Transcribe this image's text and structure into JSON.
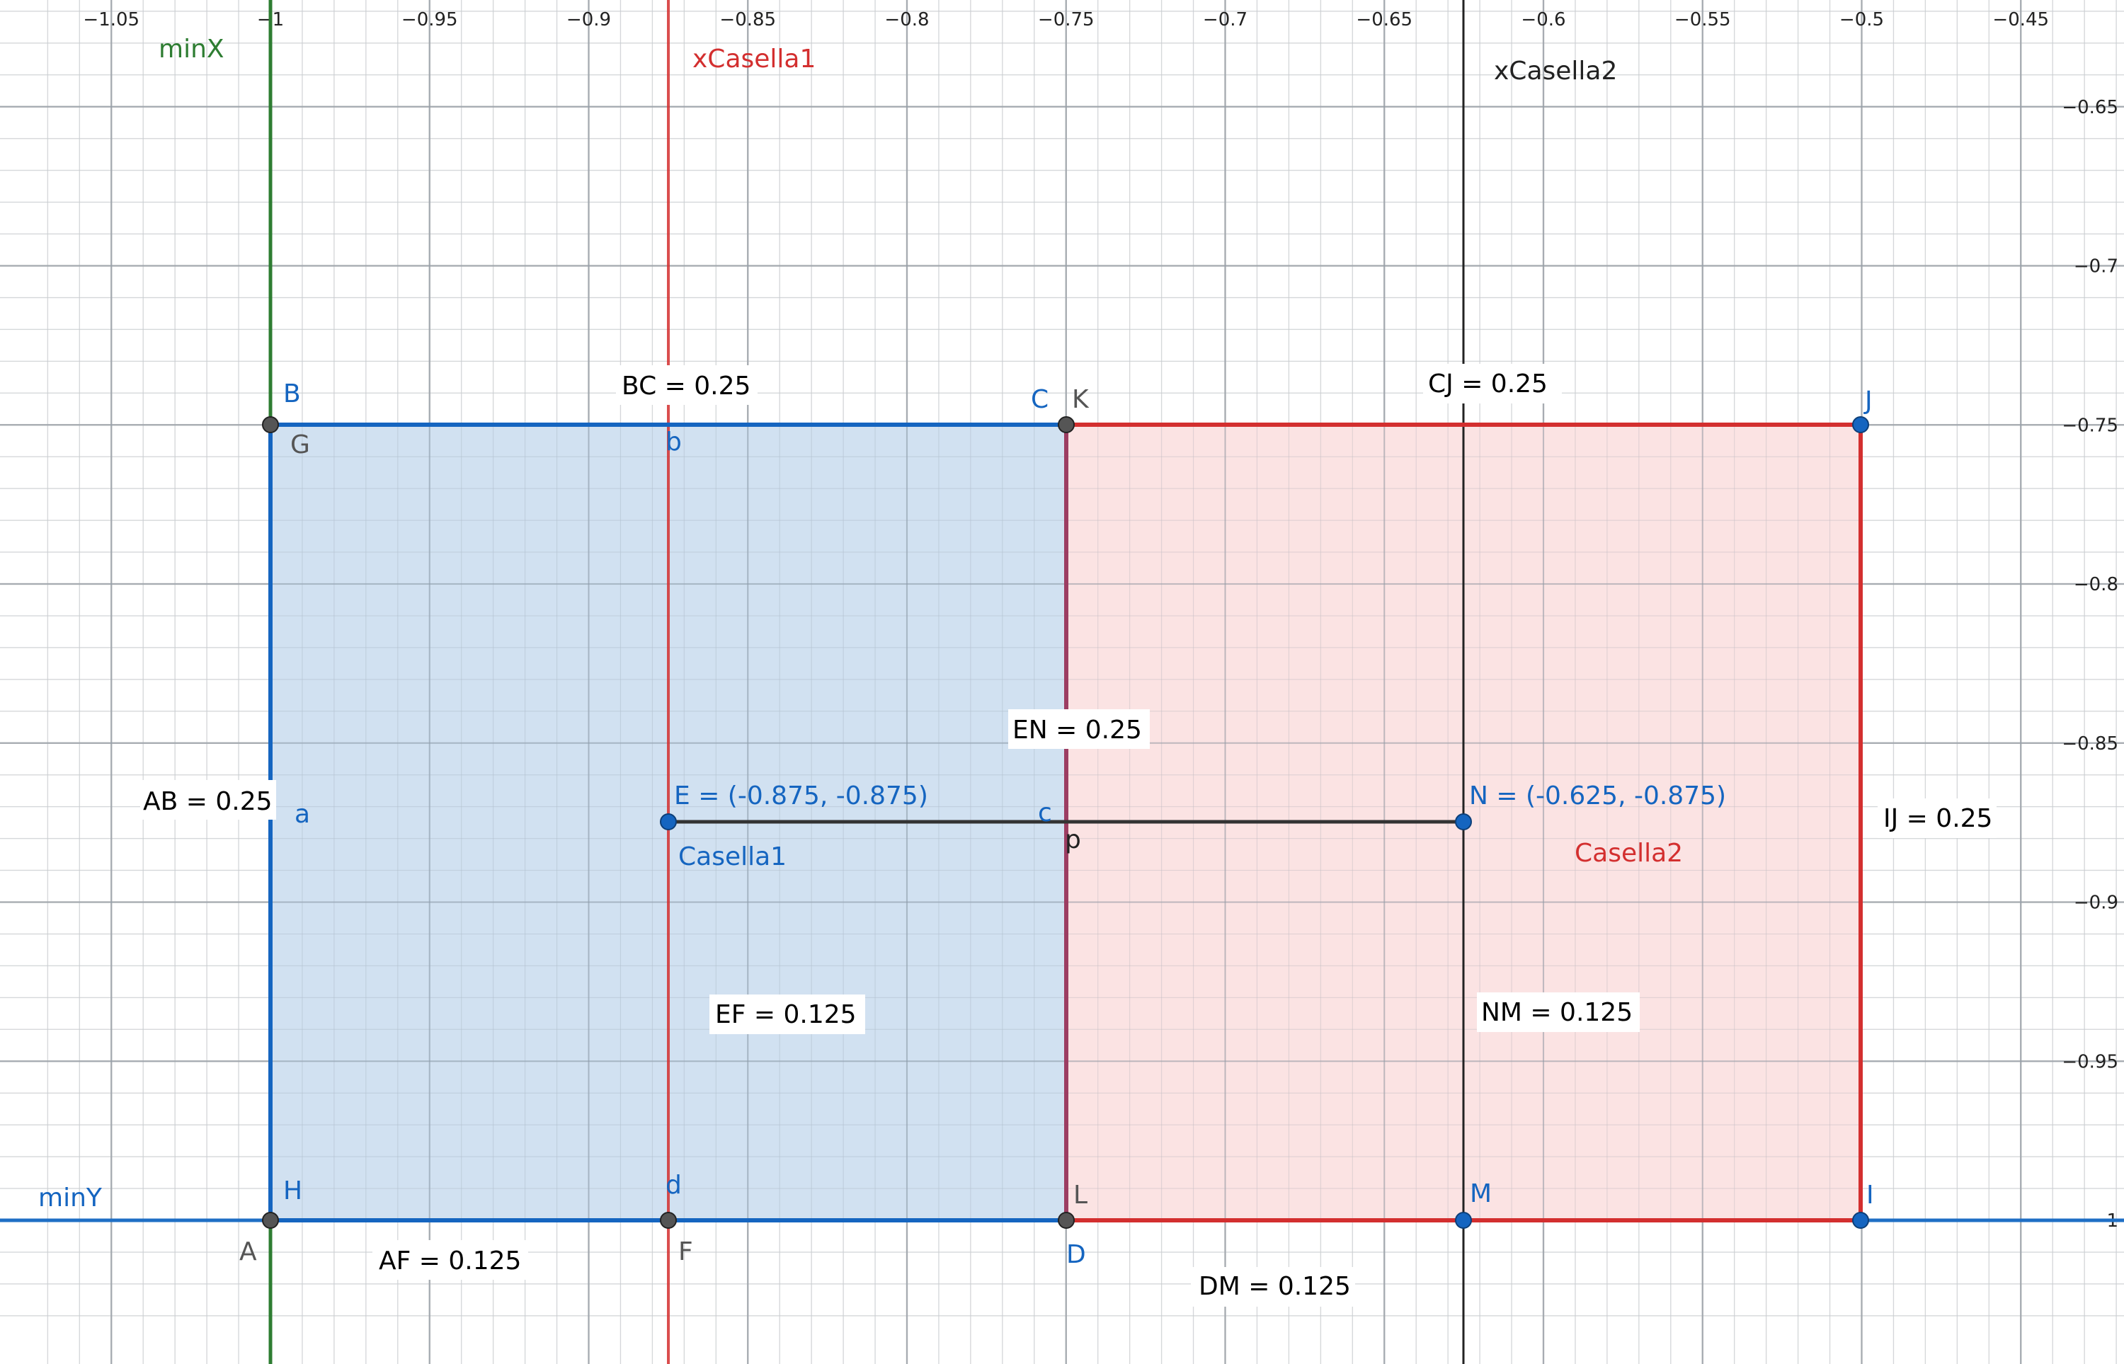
{
  "x_ticks": [
    "−1.05",
    "−1",
    "−0.95",
    "−0.9",
    "−0.85",
    "−0.8",
    "−0.75",
    "−0.7",
    "−0.65",
    "−0.6",
    "−0.55",
    "−0.5",
    "−0.45"
  ],
  "x_tick_values": [
    -1.05,
    -1,
    -0.95,
    -0.9,
    -0.85,
    -0.8,
    -0.75,
    -0.7,
    -0.65,
    -0.6,
    -0.55,
    -0.5,
    -0.45
  ],
  "y_ticks": [
    "−0.65",
    "−0.7",
    "−0.75",
    "−0.8",
    "−0.85",
    "−0.9",
    "−0.95",
    "−1"
  ],
  "y_tick_values": [
    -0.65,
    -0.7,
    -0.75,
    -0.8,
    -0.85,
    -0.9,
    -0.95,
    -1
  ],
  "colors": {
    "blue": "#1565c0",
    "red": "#d32f2f",
    "green": "#2e7d32",
    "black": "#222222",
    "gray": "#555555",
    "blue_fill": "#c5d9ee",
    "red_fill": "#fadcdc",
    "purple_edge": "#9c3d62"
  },
  "lines": {
    "minX": {
      "label": "minX",
      "x": -1
    },
    "xCasella1": {
      "label": "xCasella1",
      "x": -0.875
    },
    "xCasella2": {
      "label": "xCasella2",
      "x": -0.625
    },
    "minY": {
      "label": "minY",
      "y": -1
    }
  },
  "regions": {
    "casella1": {
      "label": "Casella1",
      "x": [
        -1,
        -0.75
      ],
      "y": [
        -1,
        -0.75
      ]
    },
    "casella2": {
      "label": "Casella2",
      "x": [
        -0.75,
        -0.5
      ],
      "y": [
        -1,
        -0.75
      ]
    }
  },
  "point_labels": {
    "A": "A",
    "B": "B",
    "C": "C",
    "D": "D",
    "F": "F",
    "G": "G",
    "H": "H",
    "I": "I",
    "J": "J",
    "K": "K",
    "L": "L",
    "M": "M",
    "a": "a",
    "b": "b",
    "c": "c",
    "d": "d",
    "p": "p",
    "E": "E = (-0.875, -0.875)",
    "N": "N = (-0.625, -0.875)"
  },
  "measures": {
    "AB": "AB = 0.25",
    "BC": "BC = 0.25",
    "CJ": "CJ = 0.25",
    "EN": "EN = 0.25",
    "IJ": "IJ = 0.25",
    "EF": "EF = 0.125",
    "NM": "NM = 0.125",
    "AF": "AF = 0.125",
    "DM": "DM = 0.125"
  }
}
